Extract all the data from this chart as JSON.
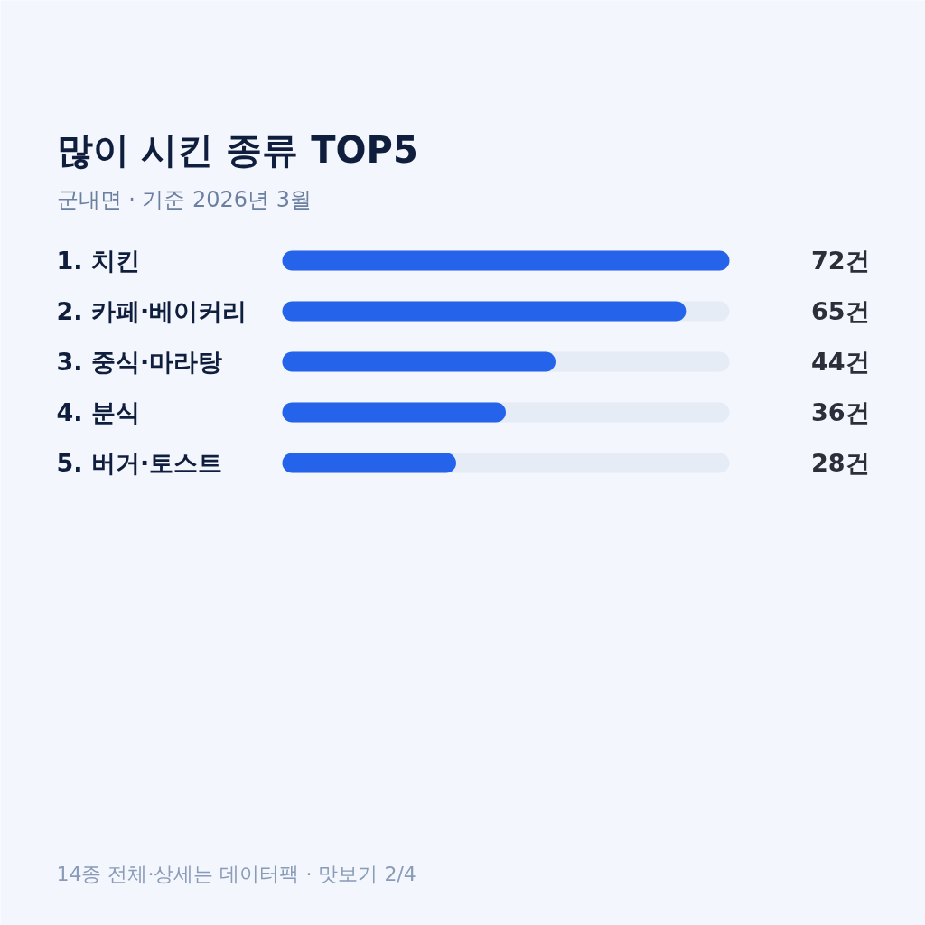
{
  "chart_data": {
    "type": "bar",
    "orientation": "horizontal",
    "title": "많이 시킨 종류 TOP5",
    "subtitle": "군내면 · 기준 2026년 3월",
    "categories": [
      "1. 치킨",
      "2. 카페·베이커리",
      "3. 중식·마라탕",
      "4. 분식",
      "5. 버거·토스트"
    ],
    "values": [
      72,
      65,
      44,
      36,
      28
    ],
    "value_labels": [
      "72건",
      "65건",
      "44건",
      "36건",
      "28건"
    ],
    "color": "#2563eb",
    "xlim": [
      0,
      72
    ],
    "tick_labels": "y",
    "annotations": [
      "14종 전체·상세는 데이터팩 · 맛보기 2/4"
    ]
  }
}
